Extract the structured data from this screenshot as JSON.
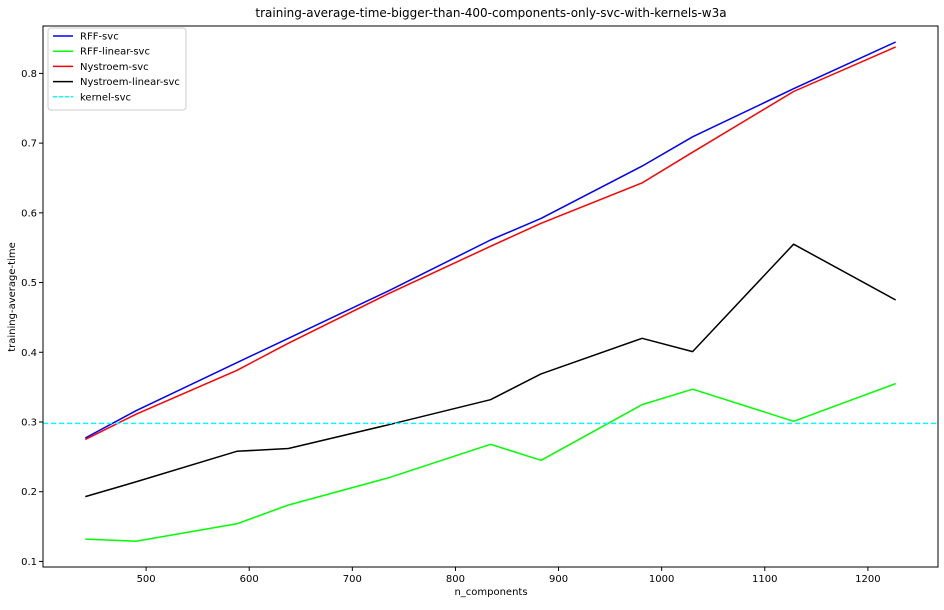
{
  "chart_data": {
    "type": "line",
    "title": "training-average-time-bigger-than-400-components-only-svc-with-kernels-w3a",
    "xlabel": "n_components",
    "ylabel": "training-average-time",
    "xlim": [
      400,
      1268
    ],
    "ylim": [
      0.092,
      0.868
    ],
    "xticks": [
      500,
      600,
      700,
      800,
      900,
      1000,
      1100,
      1200
    ],
    "yticks": [
      0.1,
      0.2,
      0.3,
      0.4,
      0.5,
      0.6,
      0.7,
      0.8
    ],
    "grid": false,
    "legend_position": "top-left",
    "x": [
      441,
      490,
      588,
      638,
      735,
      834,
      883,
      981,
      1030,
      1128,
      1227
    ],
    "series": [
      {
        "name": "RFF-svc",
        "color": "#0000ff",
        "dash": "solid",
        "values": [
          0.277,
          0.316,
          0.385,
          0.42,
          0.488,
          0.561,
          0.592,
          0.667,
          0.709,
          0.778,
          0.845
        ]
      },
      {
        "name": "RFF-linear-svc",
        "color": "#00ff00",
        "dash": "solid",
        "values": [
          0.132,
          0.129,
          0.154,
          0.181,
          0.22,
          0.268,
          0.245,
          0.325,
          0.347,
          0.301,
          0.355
        ]
      },
      {
        "name": "Nystroem-svc",
        "color": "#ff0000",
        "dash": "solid",
        "values": [
          0.275,
          0.311,
          0.374,
          0.413,
          0.484,
          0.552,
          0.585,
          0.643,
          0.687,
          0.774,
          0.838
        ]
      },
      {
        "name": "Nystroem-linear-svc",
        "color": "#000000",
        "dash": "solid",
        "values": [
          0.193,
          0.214,
          0.258,
          0.262,
          0.296,
          0.332,
          0.369,
          0.42,
          0.401,
          0.555,
          0.475
        ]
      },
      {
        "name": "kernel-svc",
        "color": "#00ffff",
        "dash": "dashed",
        "type": "hline",
        "value": 0.298
      }
    ]
  }
}
